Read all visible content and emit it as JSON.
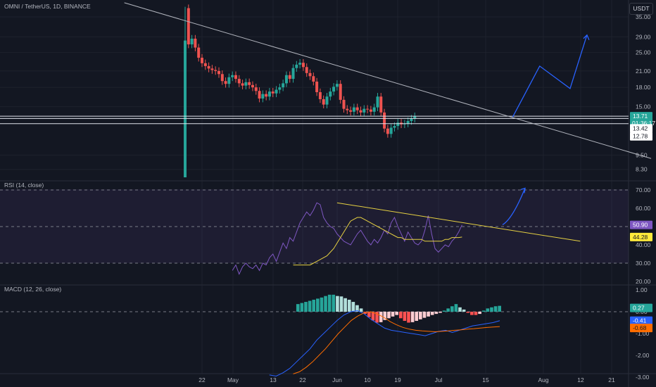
{
  "header": {
    "symbol": "OMNI / TetherUS, 1D, BINANCE",
    "currency": "USDT"
  },
  "colors": {
    "background": "#131722",
    "up": "#26a69a",
    "down": "#ef5350",
    "trendline": "#b2b5be",
    "projection": "#2962ff",
    "rsi_line": "#7e57c2",
    "rsi_ma": "#e6d142",
    "macd_line": "#2962ff",
    "signal_line": "#ff6d00",
    "hist_up_strong": "#26a69a",
    "hist_up_weak": "#b2dfdb",
    "hist_down_strong": "#ff5252",
    "hist_down_weak": "#ffcdd2"
  },
  "price_axis": {
    "ticks": [
      "35.00",
      "29.00",
      "25.00",
      "21.00",
      "18.00",
      "15.00",
      "9.50",
      "8.30"
    ],
    "badges": [
      {
        "label": "13.71",
        "sub": "01:36:17",
        "style": "green"
      },
      {
        "label": "13.42",
        "style": "white"
      },
      {
        "label": "12.78",
        "style": "white"
      }
    ]
  },
  "time_axis": {
    "labels": [
      "22",
      "May",
      "13",
      "22",
      "Jun",
      "10",
      "19",
      "Jul",
      "15",
      "Aug",
      "12",
      "21"
    ]
  },
  "rsi": {
    "title": "RSI (14, close)",
    "ticks": [
      "70.00",
      "60.00",
      "40.00",
      "30.00",
      "20.00"
    ],
    "badges": [
      {
        "label": "50.90",
        "style": "purple"
      },
      {
        "label": "44.28",
        "style": "yellow"
      }
    ]
  },
  "macd": {
    "title": "MACD (12, 26, close)",
    "ticks": [
      "1.00",
      "0.00",
      "-1.00",
      "-2.00",
      "-3.00"
    ],
    "badges": [
      {
        "label": "0.27",
        "style": "teal"
      },
      {
        "label": "-0.41",
        "style": "blue"
      },
      {
        "label": "-0.68",
        "style": "orange"
      }
    ]
  },
  "chart_data": [
    {
      "type": "candlestick",
      "title": "OMNI / TetherUS, 1D, BINANCE",
      "price_range": [
        7.5,
        40
      ],
      "log_scale": true,
      "approx_series": {
        "date_start": "2024-04-17",
        "interval": "1D",
        "closes": [
          38.0,
          27.0,
          28.5,
          26.2,
          23.8,
          22.6,
          22.0,
          21.5,
          21.2,
          21.0,
          20.4,
          19.1,
          18.6,
          19.8,
          20.2,
          19.5,
          18.7,
          18.3,
          18.9,
          18.4,
          18.0,
          17.4,
          16.2,
          16.9,
          16.5,
          17.3,
          17.0,
          17.6,
          18.0,
          18.7,
          20.2,
          19.5,
          21.6,
          22.3,
          22.7,
          21.8,
          20.6,
          20.0,
          19.0,
          17.2,
          16.1,
          15.3,
          16.5,
          17.3,
          18.1,
          18.6,
          16.0,
          14.7,
          14.5,
          14.3,
          14.9,
          14.5,
          14.2,
          14.7,
          14.6,
          14.3,
          14.9,
          16.5,
          14.2,
          12.2,
          11.6,
          12.3,
          12.5,
          12.9,
          12.7,
          12.8,
          13.1,
          13.4,
          13.71
        ],
        "note_wick": {
          "date": "2024-04-17",
          "high": 38.5,
          "low": 7.7
        }
      },
      "trendline": {
        "from": {
          "date": "2024-03-30",
          "price": 40
        },
        "to": {
          "date": "2024-09-02",
          "price": 9.2
        }
      },
      "horizontal_levels": [
        13.71,
        13.42,
        12.78
      ],
      "projection_path": [
        {
          "date": "2024-07-23",
          "price": 13.6
        },
        {
          "date": "2024-07-31",
          "price": 22.0
        },
        {
          "date": "2024-08-09",
          "price": 17.8
        },
        {
          "date": "2024-08-14",
          "price": 29.5
        }
      ]
    },
    {
      "type": "line",
      "title": "RSI (14, close)",
      "ylim": [
        18,
        75
      ],
      "bands": {
        "upper": 70,
        "middle": 50,
        "lower": 30
      },
      "series": [
        {
          "name": "RSI",
          "values": [
            26,
            29,
            24,
            28,
            30,
            28,
            27,
            29,
            26,
            30,
            29,
            33,
            35,
            31,
            36,
            41,
            38,
            44,
            42,
            47,
            52,
            55,
            58,
            56,
            59,
            63,
            62,
            55,
            52,
            50,
            49,
            46,
            44,
            42,
            41,
            40,
            43,
            46,
            48,
            45,
            42,
            40,
            43,
            41,
            44,
            48,
            46,
            52,
            55,
            50,
            46,
            42,
            47,
            44,
            41,
            40,
            42,
            48,
            56,
            46,
            38,
            36,
            38,
            40,
            39,
            42,
            44,
            47,
            50.9
          ]
        },
        {
          "name": "RSI-based MA",
          "values": [
            29,
            29,
            29,
            29,
            29,
            29,
            30,
            31,
            32,
            33,
            34,
            36,
            38,
            41,
            44,
            47,
            50,
            53,
            54,
            55,
            55,
            54,
            53,
            52,
            51,
            50,
            49,
            48,
            47,
            46,
            45,
            44,
            44,
            43,
            43,
            43,
            43,
            43,
            43,
            42,
            42,
            42,
            42,
            42,
            42,
            43,
            43,
            44,
            44,
            44,
            44.28
          ]
        }
      ],
      "trendline": {
        "from": {
          "date": "2024-06-01",
          "value": 63
        },
        "to": {
          "date": "2024-08-12",
          "value": 42
        }
      },
      "projection": {
        "from": {
          "date": "2024-07-20",
          "value": 51
        },
        "to": {
          "date": "2024-07-25",
          "value": 71
        }
      }
    },
    {
      "type": "bar",
      "title": "MACD (12, 26, close)",
      "ylim": [
        -3.2,
        1.2
      ],
      "histogram": [
        0.35,
        0.4,
        0.45,
        0.5,
        0.55,
        0.6,
        0.65,
        0.72,
        0.78,
        0.78,
        0.72,
        0.7,
        0.62,
        0.55,
        0.45,
        0.3,
        0.15,
        -0.1,
        -0.25,
        -0.4,
        -0.5,
        -0.48,
        -0.38,
        -0.3,
        -0.22,
        -0.15,
        -0.3,
        -0.42,
        -0.5,
        -0.48,
        -0.42,
        -0.35,
        -0.28,
        -0.22,
        -0.15,
        -0.1,
        -0.05,
        0.05,
        0.15,
        0.25,
        0.35,
        0.2,
        0.1,
        -0.05,
        -0.15,
        -0.15,
        -0.1,
        0.05,
        0.15,
        0.2,
        0.25,
        0.27
      ],
      "series": [
        {
          "name": "MACD",
          "values": [
            -2.9,
            -2.95,
            -2.8,
            -2.6,
            -2.3,
            -2.0,
            -1.7,
            -1.3,
            -1.0,
            -0.7,
            -0.4,
            -0.15,
            0.0,
            0.05,
            -0.1,
            -0.35,
            -0.55,
            -0.75,
            -0.85,
            -0.9,
            -0.95,
            -1.0,
            -1.05,
            -1.1,
            -1.0,
            -0.9,
            -0.85,
            -0.95,
            -0.85,
            -0.75,
            -0.65,
            -0.6,
            -0.55,
            -0.5,
            -0.41
          ]
        },
        {
          "name": "Signal",
          "values": [
            -2.85,
            -2.75,
            -2.55,
            -2.3,
            -2.0,
            -1.7,
            -1.35,
            -1.0,
            -0.7,
            -0.4,
            -0.2,
            -0.05,
            0.0,
            -0.1,
            -0.25,
            -0.45,
            -0.6,
            -0.72,
            -0.8,
            -0.85,
            -0.88,
            -0.9,
            -0.92,
            -0.9,
            -0.88,
            -0.85,
            -0.83,
            -0.8,
            -0.78,
            -0.75,
            -0.72,
            -0.7,
            -0.68
          ]
        }
      ],
      "projection": null
    }
  ]
}
